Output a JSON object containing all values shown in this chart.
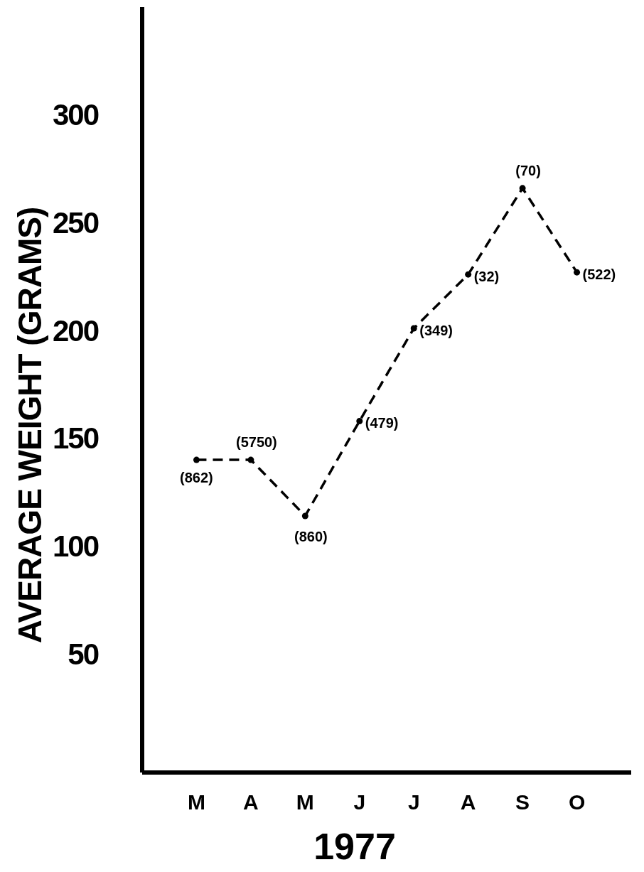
{
  "chart_data": {
    "type": "line",
    "xlabel": "1977",
    "ylabel": "AVERAGE WEIGHT (GRAMS)",
    "categories": [
      "M",
      "A",
      "M",
      "J",
      "J",
      "A",
      "S",
      "O"
    ],
    "series": [
      {
        "color": "#000000",
        "values": [
          140,
          140,
          114,
          158,
          201,
          226,
          266,
          227
        ]
      }
    ],
    "annotations": [
      "(862)",
      "(5750)",
      "(860)",
      "(479)",
      "(349)",
      "(32)",
      "(70)",
      "(522)"
    ],
    "ylim": [
      -5,
      350
    ],
    "yticks": [
      50,
      100,
      150,
      200,
      250,
      300
    ],
    "marker": "circle",
    "line_style": "dashed"
  }
}
